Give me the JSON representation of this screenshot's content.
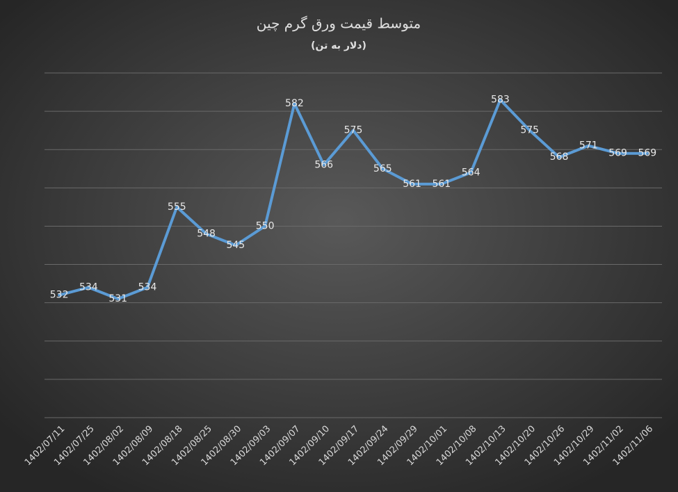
{
  "chart_data": {
    "type": "line",
    "title": "متوسط قیمت ورق گرم چین",
    "subtitle": "(دلار به تن)",
    "categories": [
      "1402/07/11",
      "1402/07/25",
      "1402/08/02",
      "1402/08/09",
      "1402/08/18",
      "1402/08/25",
      "1402/08/30",
      "1402/09/03",
      "1402/09/07",
      "1402/09/10",
      "1402/09/17",
      "1402/09/24",
      "1402/09/29",
      "1402/10/01",
      "1402/10/08",
      "1402/10/13",
      "1402/10/20",
      "1402/10/26",
      "1402/10/29",
      "1402/11/02",
      "1402/11/06"
    ],
    "values": [
      532,
      534,
      531,
      534,
      555,
      548,
      545,
      550,
      582,
      566,
      575,
      565,
      561,
      561,
      564,
      583,
      575,
      568,
      571,
      569,
      569
    ],
    "color": "#5b9bd5",
    "ylim": [
      500,
      590
    ],
    "yticks": [
      500,
      510,
      520,
      530,
      540,
      550,
      560,
      570,
      580,
      590
    ],
    "grid": true
  }
}
